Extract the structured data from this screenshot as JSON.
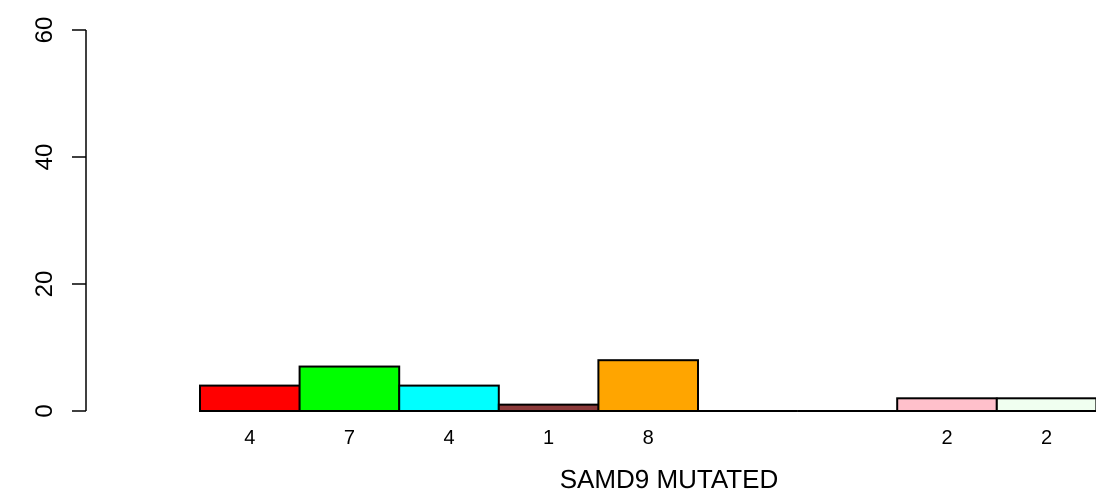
{
  "chart_data": {
    "type": "bar",
    "title": "",
    "xlabel": "SAMD9 MUTATED",
    "ylabel": "",
    "ylim": [
      0,
      60
    ],
    "yticks": [
      0,
      20,
      40,
      60
    ],
    "grid": false,
    "bars": [
      {
        "value": 4,
        "label": "4",
        "color": "#ff0000"
      },
      {
        "value": 7,
        "label": "7",
        "color": "#00ff00"
      },
      {
        "value": 4,
        "label": "4",
        "color": "#00ffff"
      },
      {
        "value": 1,
        "label": "1",
        "color": "#8b3a3a"
      },
      {
        "value": 8,
        "label": "8",
        "color": "#ffa500"
      },
      {
        "value": 0,
        "label": "",
        "color": "#ffffff"
      },
      {
        "value": 0,
        "label": "",
        "color": "#ffffff"
      },
      {
        "value": 2,
        "label": "2",
        "color": "#ffc0cb"
      },
      {
        "value": 2,
        "label": "2",
        "color": "#f0fff0"
      }
    ]
  }
}
